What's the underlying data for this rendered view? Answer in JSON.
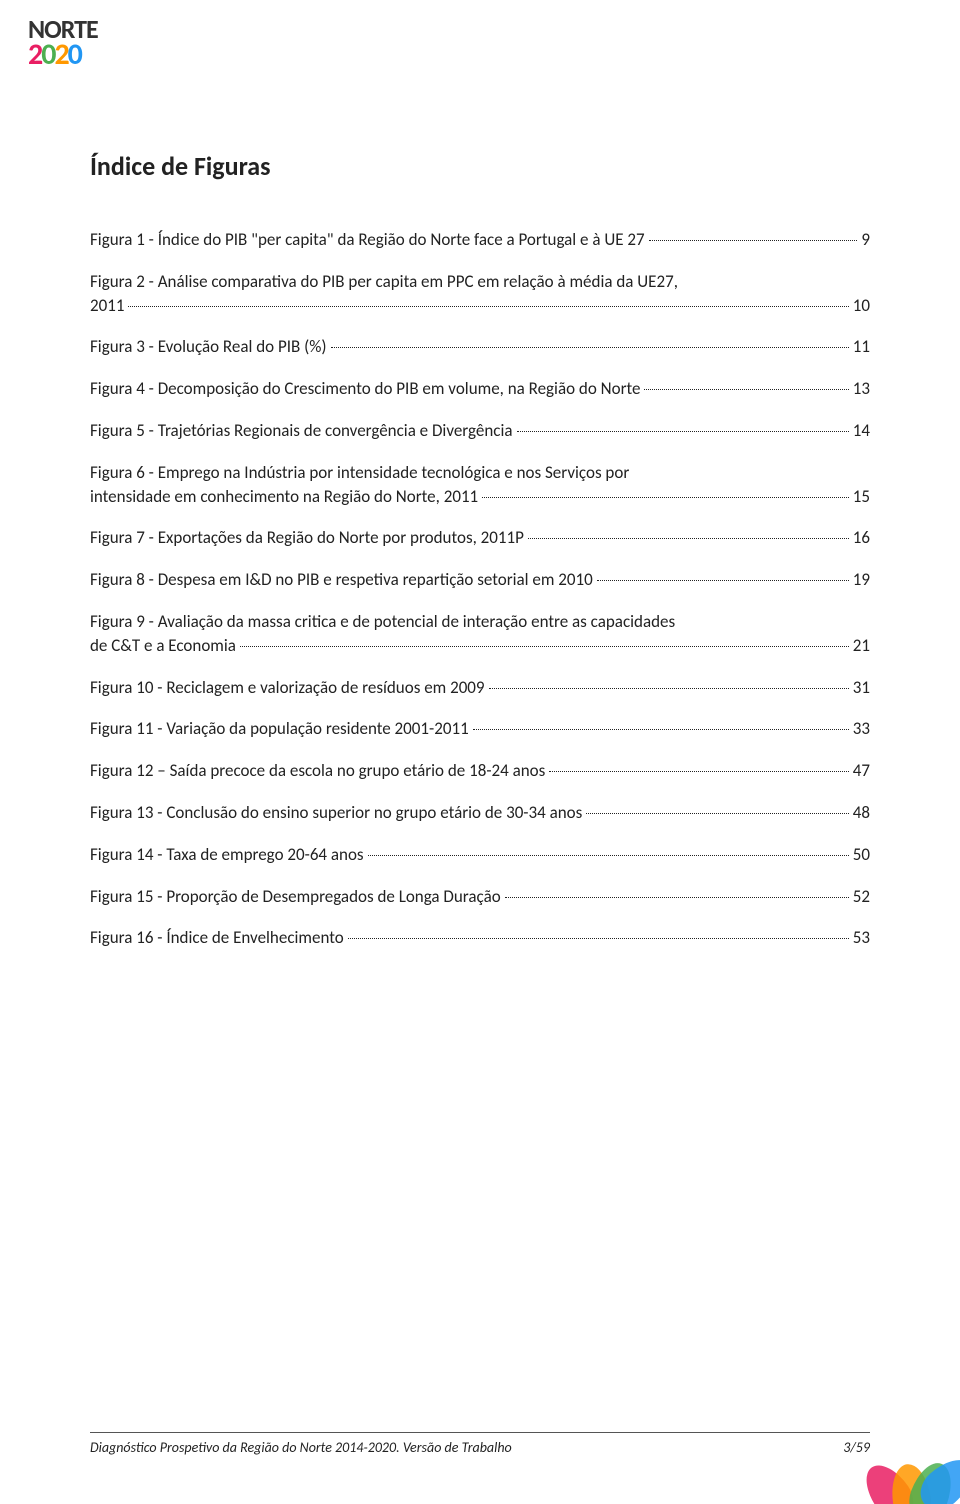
{
  "logo": {
    "top": "NORTE",
    "bottom": [
      "2",
      "0",
      "2",
      "0"
    ]
  },
  "heading": "Índice de Figuras",
  "entries": [
    {
      "text": "Figura 1 - Índice do PIB \"per capita\" da Região do Norte face a Portugal e à UE 27",
      "page": "9",
      "wrap": false
    },
    {
      "text": "Figura 2 - Análise comparativa do PIB per capita em PPC em relação à média da UE27, 2011",
      "tail": "2011",
      "page": "10",
      "wrap": true,
      "head": "Figura 2 - Análise comparativa do PIB per capita em PPC em relação à média da UE27,"
    },
    {
      "text": "Figura 3 - Evolução Real do PIB (%)",
      "page": "11",
      "wrap": false
    },
    {
      "text": "Figura 4 - Decomposição do Crescimento do PIB em volume, na Região do Norte",
      "page": "13",
      "wrap": false
    },
    {
      "text": "Figura 5 - Trajetórias Regionais de convergência e Divergência",
      "page": "14",
      "wrap": false
    },
    {
      "text": "Figura 6 - Emprego na Indústria por intensidade tecnológica e nos Serviços por intensidade em conhecimento na Região do Norte, 2011",
      "head": "Figura 6 - Emprego na Indústria por intensidade tecnológica e nos Serviços por",
      "tail": "intensidade em conhecimento na Região do Norte, 2011",
      "page": "15",
      "wrap": true
    },
    {
      "text": "Figura 7 - Exportações da Região do Norte por produtos, 2011P",
      "page": "16",
      "wrap": false
    },
    {
      "text": "Figura 8 - Despesa em I&D no PIB e respetiva repartição setorial em 2010",
      "page": "19",
      "wrap": false
    },
    {
      "text": "Figura 9 - Avaliação da massa critica e de potencial de interação entre as capacidades de C&T e a Economia",
      "head": "Figura 9 - Avaliação da massa critica e de potencial de interação entre as capacidades",
      "tail": "de C&T e a Economia",
      "page": "21",
      "wrap": true
    },
    {
      "text": "Figura 10 - Reciclagem e valorização de resíduos em 2009",
      "page": "31",
      "wrap": false
    },
    {
      "text": "Figura 11 - Variação da população residente 2001-2011",
      "page": "33",
      "wrap": false
    },
    {
      "text": "Figura 12 – Saída precoce da escola no grupo etário de 18-24 anos",
      "page": "47",
      "wrap": false
    },
    {
      "text": "Figura 13 - Conclusão do ensino superior no grupo etário de 30-34 anos",
      "page": "48",
      "wrap": false
    },
    {
      "text": "Figura 14 - Taxa de emprego 20-64 anos",
      "page": "50",
      "wrap": false
    },
    {
      "text": "Figura 15 - Proporção de Desempregados de Longa Duração",
      "page": "52",
      "wrap": false
    },
    {
      "text": "Figura 16 - Índice de Envelhecimento",
      "page": "53",
      "wrap": false
    }
  ],
  "footer": {
    "text": "Diagnóstico Prospetivo da Região do Norte 2014-2020. Versão de Trabalho",
    "page": "3/59"
  }
}
